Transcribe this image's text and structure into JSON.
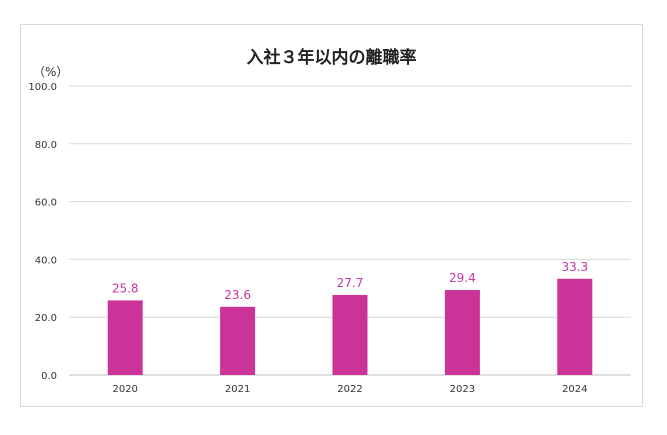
{
  "chart_data": {
    "type": "bar",
    "title": "入社３年以内の離職率",
    "ylabel": "（%）",
    "categories": [
      "2020",
      "2021",
      "2022",
      "2023",
      "2024"
    ],
    "values": [
      25.8,
      23.6,
      27.7,
      29.4,
      33.3
    ],
    "data_labels": [
      "25.8",
      "23.6",
      "27.7",
      "29.4",
      "33.3"
    ],
    "yticks": [
      "0.0",
      "20.0",
      "40.0",
      "60.0",
      "80.0",
      "100.0"
    ],
    "ylim": [
      0,
      100
    ],
    "grid": true,
    "legend": "none",
    "bar_color": "#cc3399"
  }
}
